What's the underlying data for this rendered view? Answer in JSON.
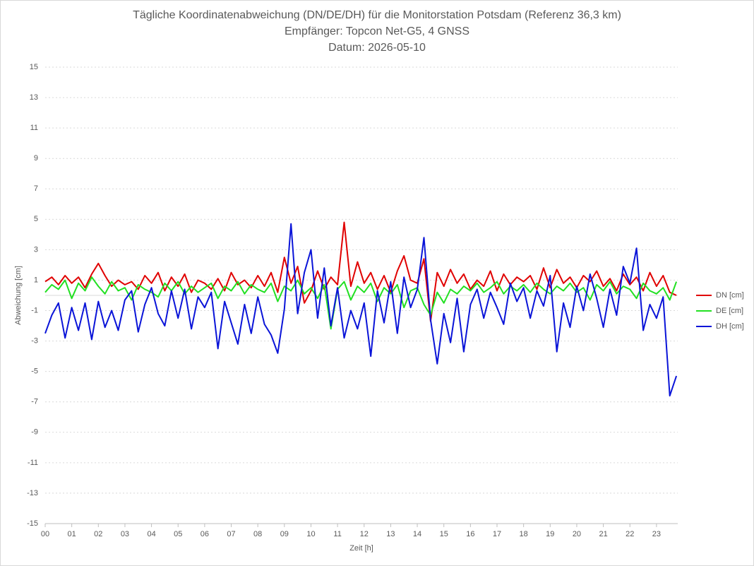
{
  "chart_data": {
    "type": "line",
    "title": "Tägliche Koordinatenabweichung (DN/DE/DH) für die Monitorstation Potsdam (Referenz 36,3 km)",
    "subtitle": "Empfänger: Topcon Net-G5, 4 GNSS",
    "date_line": "Datum: 2026-05-10",
    "x_label": "Zeit [h]",
    "y_label": "Abweichung [cm]",
    "x": [
      0,
      0.25,
      0.5,
      0.75,
      1,
      1.25,
      1.5,
      1.75,
      2,
      2.25,
      2.5,
      2.75,
      3,
      3.25,
      3.5,
      3.75,
      4,
      4.25,
      4.5,
      4.75,
      5,
      5.25,
      5.5,
      5.75,
      6,
      6.25,
      6.5,
      6.75,
      7,
      7.25,
      7.5,
      7.75,
      8,
      8.25,
      8.5,
      8.75,
      9,
      9.25,
      9.5,
      9.75,
      10,
      10.25,
      10.5,
      10.75,
      11,
      11.25,
      11.5,
      11.75,
      12,
      12.25,
      12.5,
      12.75,
      13,
      13.25,
      13.5,
      13.75,
      14,
      14.25,
      14.5,
      14.75,
      15,
      15.25,
      15.5,
      15.75,
      16,
      16.25,
      16.5,
      16.75,
      17,
      17.25,
      17.5,
      17.75,
      18,
      18.25,
      18.5,
      18.75,
      19,
      19.25,
      19.5,
      19.75,
      20,
      20.25,
      20.5,
      20.75,
      21,
      21.25,
      21.5,
      21.75,
      22,
      22.25,
      22.5,
      22.75,
      23,
      23.25,
      23.5,
      23.75
    ],
    "series": [
      {
        "name": "DN [cm]",
        "color": "#e00000",
        "values": [
          0.9,
          1.2,
          0.7,
          1.3,
          0.8,
          1.2,
          0.5,
          1.4,
          2.1,
          1.3,
          0.6,
          1.0,
          0.7,
          0.9,
          0.4,
          1.3,
          0.8,
          1.5,
          0.3,
          1.2,
          0.6,
          1.4,
          0.2,
          1.0,
          0.8,
          0.4,
          1.1,
          0.3,
          1.5,
          0.7,
          1.0,
          0.5,
          1.3,
          0.6,
          1.5,
          0.2,
          2.5,
          0.8,
          1.9,
          -0.5,
          0.3,
          1.6,
          0.4,
          1.2,
          0.7,
          4.8,
          0.6,
          2.2,
          0.8,
          1.5,
          0.4,
          1.3,
          0.2,
          1.6,
          2.6,
          1.0,
          0.8,
          2.4,
          -1.7,
          1.5,
          0.6,
          1.7,
          0.8,
          1.4,
          0.4,
          1.0,
          0.6,
          1.6,
          0.3,
          1.4,
          0.7,
          1.2,
          0.9,
          1.3,
          0.4,
          1.8,
          0.5,
          1.7,
          0.8,
          1.2,
          0.5,
          1.3,
          0.9,
          1.6,
          0.6,
          1.1,
          0.3,
          1.4,
          0.7,
          1.2,
          0.3,
          1.5,
          0.6,
          1.3,
          0.2,
          0.0
        ]
      },
      {
        "name": "DE [cm]",
        "color": "#22e022",
        "values": [
          0.2,
          0.7,
          0.4,
          1.0,
          -0.2,
          0.8,
          0.3,
          1.2,
          0.6,
          0.1,
          0.9,
          0.3,
          0.5,
          -0.3,
          0.7,
          0.4,
          0.2,
          -0.1,
          0.8,
          0.3,
          0.9,
          0.1,
          0.6,
          0.2,
          0.5,
          0.8,
          -0.2,
          0.6,
          0.3,
          0.9,
          0.1,
          0.7,
          0.4,
          0.2,
          0.8,
          -0.4,
          0.6,
          0.3,
          1.0,
          0.1,
          0.5,
          -0.2,
          0.7,
          -2.2,
          0.4,
          0.9,
          -0.3,
          0.6,
          0.2,
          0.8,
          -0.4,
          0.5,
          0.1,
          0.7,
          -0.8,
          0.3,
          0.5,
          -0.6,
          -1.3,
          0.2,
          -0.5,
          0.4,
          0.1,
          0.6,
          0.3,
          0.8,
          0.2,
          0.5,
          0.9,
          0.1,
          0.6,
          0.3,
          0.7,
          0.2,
          0.8,
          0.4,
          0.1,
          0.6,
          0.3,
          0.8,
          0.2,
          0.5,
          -0.3,
          0.7,
          0.3,
          0.9,
          0.1,
          0.6,
          0.4,
          -0.2,
          0.8,
          0.3,
          0.1,
          0.5,
          -0.3,
          0.9
        ]
      },
      {
        "name": "DH [cm]",
        "color": "#0a14d8",
        "values": [
          -2.5,
          -1.3,
          -0.5,
          -2.8,
          -0.8,
          -2.3,
          -0.5,
          -2.9,
          -0.4,
          -2.1,
          -1.0,
          -2.3,
          -0.3,
          0.3,
          -2.4,
          -0.6,
          0.5,
          -1.2,
          -2.0,
          0.3,
          -1.5,
          0.4,
          -2.2,
          -0.1,
          -0.8,
          0.2,
          -3.5,
          -0.4,
          -1.8,
          -3.2,
          -0.6,
          -2.5,
          -0.1,
          -1.9,
          -2.6,
          -3.8,
          -0.9,
          4.7,
          -1.2,
          1.5,
          3.0,
          -1.5,
          1.8,
          -2.0,
          0.5,
          -2.8,
          -1.0,
          -2.2,
          -0.5,
          -4.0,
          0.3,
          -1.8,
          0.9,
          -2.5,
          1.2,
          -0.8,
          0.4,
          3.8,
          -1.6,
          -4.5,
          -1.2,
          -3.1,
          -0.2,
          -3.7,
          -0.6,
          0.4,
          -1.5,
          0.2,
          -0.8,
          -1.9,
          0.8,
          -0.4,
          0.5,
          -1.5,
          0.3,
          -0.7,
          1.3,
          -3.7,
          -0.5,
          -2.1,
          0.6,
          -1.0,
          1.4,
          -0.2,
          -2.1,
          0.4,
          -1.3,
          1.9,
          0.8,
          3.1,
          -2.3,
          -0.6,
          -1.5,
          -0.1,
          -6.6,
          -5.3
        ]
      }
    ],
    "xlim": [
      0,
      23.8
    ],
    "xticks": [
      {
        "value": 0,
        "label": "00"
      },
      {
        "value": 1,
        "label": "01"
      },
      {
        "value": 2,
        "label": "02"
      },
      {
        "value": 3,
        "label": "03"
      },
      {
        "value": 4,
        "label": "04"
      },
      {
        "value": 5,
        "label": "05"
      },
      {
        "value": 6,
        "label": "06"
      },
      {
        "value": 7,
        "label": "07"
      },
      {
        "value": 8,
        "label": "08"
      },
      {
        "value": 9,
        "label": "09"
      },
      10,
      11,
      12,
      13,
      14,
      15,
      16,
      17,
      18,
      19,
      20,
      21,
      22,
      23
    ],
    "ylim": [
      -15,
      15
    ],
    "yticks": [
      -15,
      -13,
      -11,
      -9,
      -7,
      -5,
      -3,
      -1,
      1,
      3,
      5,
      7,
      9,
      11,
      13,
      15
    ],
    "grid": true,
    "legend": "right"
  }
}
